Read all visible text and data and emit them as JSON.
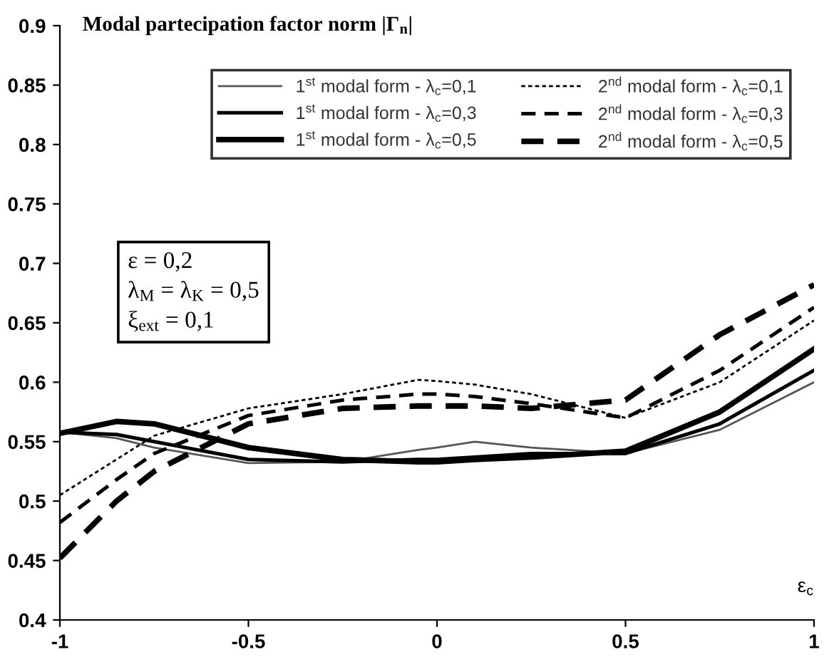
{
  "chart_data": {
    "type": "line",
    "title": "Modal partecipation factor norm |Γ$_{n}$|",
    "xlabel": "ε$_{c}$",
    "x": [
      -1,
      -0.85,
      -0.75,
      -0.5,
      -0.25,
      -0.05,
      0,
      0.1,
      0.25,
      0.5,
      0.75,
      1
    ],
    "series": [
      {
        "name": "1$^{st}$ modal form - λ$_{c}$=0,1",
        "color": "#555555",
        "line_style": "solid",
        "values": [
          0.558,
          0.553,
          0.545,
          0.532,
          0.533,
          0.543,
          0.545,
          0.55,
          0.545,
          0.54,
          0.56,
          0.6
        ]
      },
      {
        "name": "1$^{st}$ modal form - λ$_{c}$=0,3",
        "color": "#000000",
        "line_style": "solid",
        "values": [
          0.558,
          0.556,
          0.55,
          0.535,
          0.533,
          0.535,
          0.535,
          0.537,
          0.54,
          0.54,
          0.565,
          0.61
        ]
      },
      {
        "name": "1$^{st}$ modal form - λ$_{c}$=0,5",
        "color": "#000000",
        "line_style": "solid",
        "values": [
          0.557,
          0.567,
          0.565,
          0.545,
          0.535,
          0.533,
          0.533,
          0.535,
          0.537,
          0.542,
          0.575,
          0.628
        ]
      },
      {
        "name": "2$^{nd}$ modal form - λ$_{c}$=0,1",
        "color": "#000000",
        "line_style": "dotted",
        "values": [
          0.505,
          0.535,
          0.555,
          0.578,
          0.59,
          0.602,
          0.601,
          0.598,
          0.59,
          0.57,
          0.6,
          0.652
        ]
      },
      {
        "name": "2$^{nd}$ modal form - λ$_{c}$=0,3",
        "color": "#000000",
        "line_style": "dashed",
        "values": [
          0.482,
          0.518,
          0.54,
          0.572,
          0.585,
          0.59,
          0.59,
          0.588,
          0.582,
          0.57,
          0.61,
          0.663
        ]
      },
      {
        "name": "2$^{nd}$ modal form - λ$_{c}$=0,5",
        "color": "#000000",
        "line_style": "dashed",
        "values": [
          0.452,
          0.5,
          0.525,
          0.565,
          0.578,
          0.58,
          0.58,
          0.58,
          0.578,
          0.585,
          0.64,
          0.682
        ]
      }
    ],
    "annotations": [
      "ε = 0,2",
      "λ$_{M}$ = λ$_{K}$ = 0,5",
      "ξ$_{ext}$ = 0,1"
    ],
    "xlim": [
      -1,
      1
    ],
    "ylim": [
      0.4,
      0.9
    ],
    "xticks": [
      -1,
      -0.5,
      0,
      0.5,
      1
    ],
    "yticks": [
      0.4,
      0.45,
      0.5,
      0.55,
      0.6,
      0.65,
      0.7,
      0.75,
      0.8,
      0.85,
      0.9
    ],
    "grid": false,
    "legend": "top",
    "marker": "none"
  }
}
